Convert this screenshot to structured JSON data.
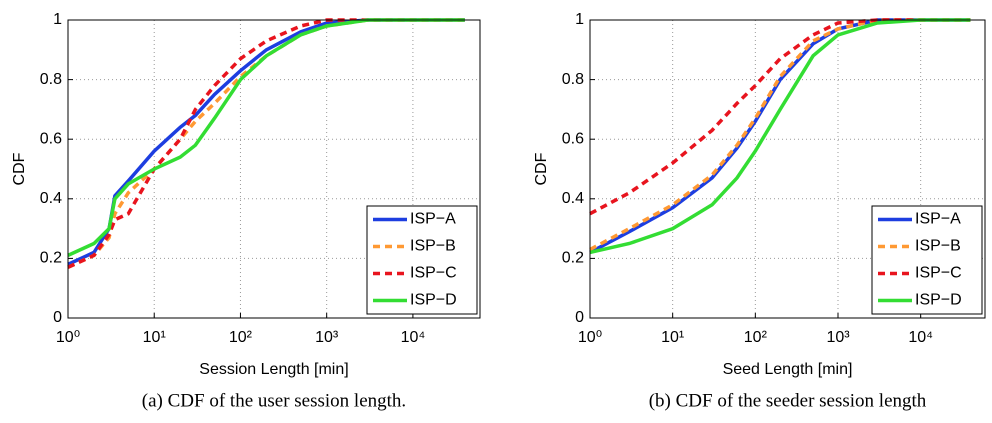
{
  "chart_data": [
    {
      "type": "line",
      "caption": "(a) CDF of the user session length.",
      "xlabel": "Session Length [min]",
      "ylabel": "CDF",
      "xscale": "log",
      "grid": true,
      "legend": "lower right",
      "xlim": [
        1,
        60000
      ],
      "ylim": [
        0,
        1
      ],
      "xticks": [
        {
          "value": 1,
          "label": "10⁰"
        },
        {
          "value": 10,
          "label": "10¹"
        },
        {
          "value": 100,
          "label": "10²"
        },
        {
          "value": 1000,
          "label": "10³"
        },
        {
          "value": 10000,
          "label": "10⁴"
        }
      ],
      "yticks": [
        0,
        0.2,
        0.4,
        0.6,
        0.8,
        1
      ],
      "x": [
        1,
        2,
        3,
        3.5,
        5,
        10,
        20,
        30,
        50,
        100,
        200,
        500,
        1000,
        3000,
        10000,
        40000
      ],
      "series": [
        {
          "name": "ISP−A",
          "color": "#1d3ee0",
          "style": "solid",
          "values": [
            0.18,
            0.22,
            0.3,
            0.41,
            0.46,
            0.56,
            0.64,
            0.68,
            0.75,
            0.83,
            0.9,
            0.96,
            0.99,
            1,
            1,
            1
          ]
        },
        {
          "name": "ISP−B",
          "color": "#ff9933",
          "style": "dashed",
          "values": [
            0.17,
            0.21,
            0.27,
            0.35,
            0.42,
            0.5,
            0.6,
            0.66,
            0.72,
            0.81,
            0.88,
            0.95,
            0.98,
            1,
            1,
            1
          ]
        },
        {
          "name": "ISP−C",
          "color": "#e8141e",
          "style": "dashed",
          "values": [
            0.17,
            0.21,
            0.28,
            0.33,
            0.35,
            0.5,
            0.6,
            0.7,
            0.78,
            0.87,
            0.93,
            0.98,
            1,
            1,
            1,
            1
          ]
        },
        {
          "name": "ISP−D",
          "color": "#33dd33",
          "style": "solid",
          "values": [
            0.21,
            0.25,
            0.3,
            0.4,
            0.45,
            0.5,
            0.54,
            0.58,
            0.67,
            0.8,
            0.88,
            0.95,
            0.98,
            1,
            1,
            1
          ]
        }
      ]
    },
    {
      "type": "line",
      "caption": "(b) CDF of the seeder session length",
      "xlabel": "Seed Length [min]",
      "ylabel": "CDF",
      "xscale": "log",
      "grid": true,
      "legend": "lower right",
      "xlim": [
        1,
        60000
      ],
      "ylim": [
        0,
        1
      ],
      "xticks": [
        {
          "value": 1,
          "label": "10⁰"
        },
        {
          "value": 10,
          "label": "10¹"
        },
        {
          "value": 100,
          "label": "10²"
        },
        {
          "value": 1000,
          "label": "10³"
        },
        {
          "value": 10000,
          "label": "10⁴"
        }
      ],
      "yticks": [
        0,
        0.2,
        0.4,
        0.6,
        0.8,
        1
      ],
      "x": [
        1,
        3,
        10,
        30,
        60,
        100,
        200,
        500,
        1000,
        3000,
        10000,
        40000
      ],
      "series": [
        {
          "name": "ISP−A",
          "color": "#1d3ee0",
          "style": "solid",
          "values": [
            0.22,
            0.29,
            0.37,
            0.47,
            0.57,
            0.66,
            0.8,
            0.92,
            0.97,
            1,
            1,
            1
          ]
        },
        {
          "name": "ISP−B",
          "color": "#ff9933",
          "style": "dashed",
          "values": [
            0.23,
            0.3,
            0.38,
            0.48,
            0.58,
            0.67,
            0.81,
            0.93,
            0.97,
            1,
            1,
            1
          ]
        },
        {
          "name": "ISP−C",
          "color": "#e8141e",
          "style": "dashed",
          "values": [
            0.35,
            0.42,
            0.52,
            0.63,
            0.72,
            0.78,
            0.87,
            0.95,
            0.99,
            1,
            1,
            1
          ]
        },
        {
          "name": "ISP−D",
          "color": "#33dd33",
          "style": "solid",
          "values": [
            0.22,
            0.25,
            0.3,
            0.38,
            0.47,
            0.56,
            0.7,
            0.88,
            0.95,
            0.99,
            1,
            1
          ]
        }
      ]
    }
  ]
}
